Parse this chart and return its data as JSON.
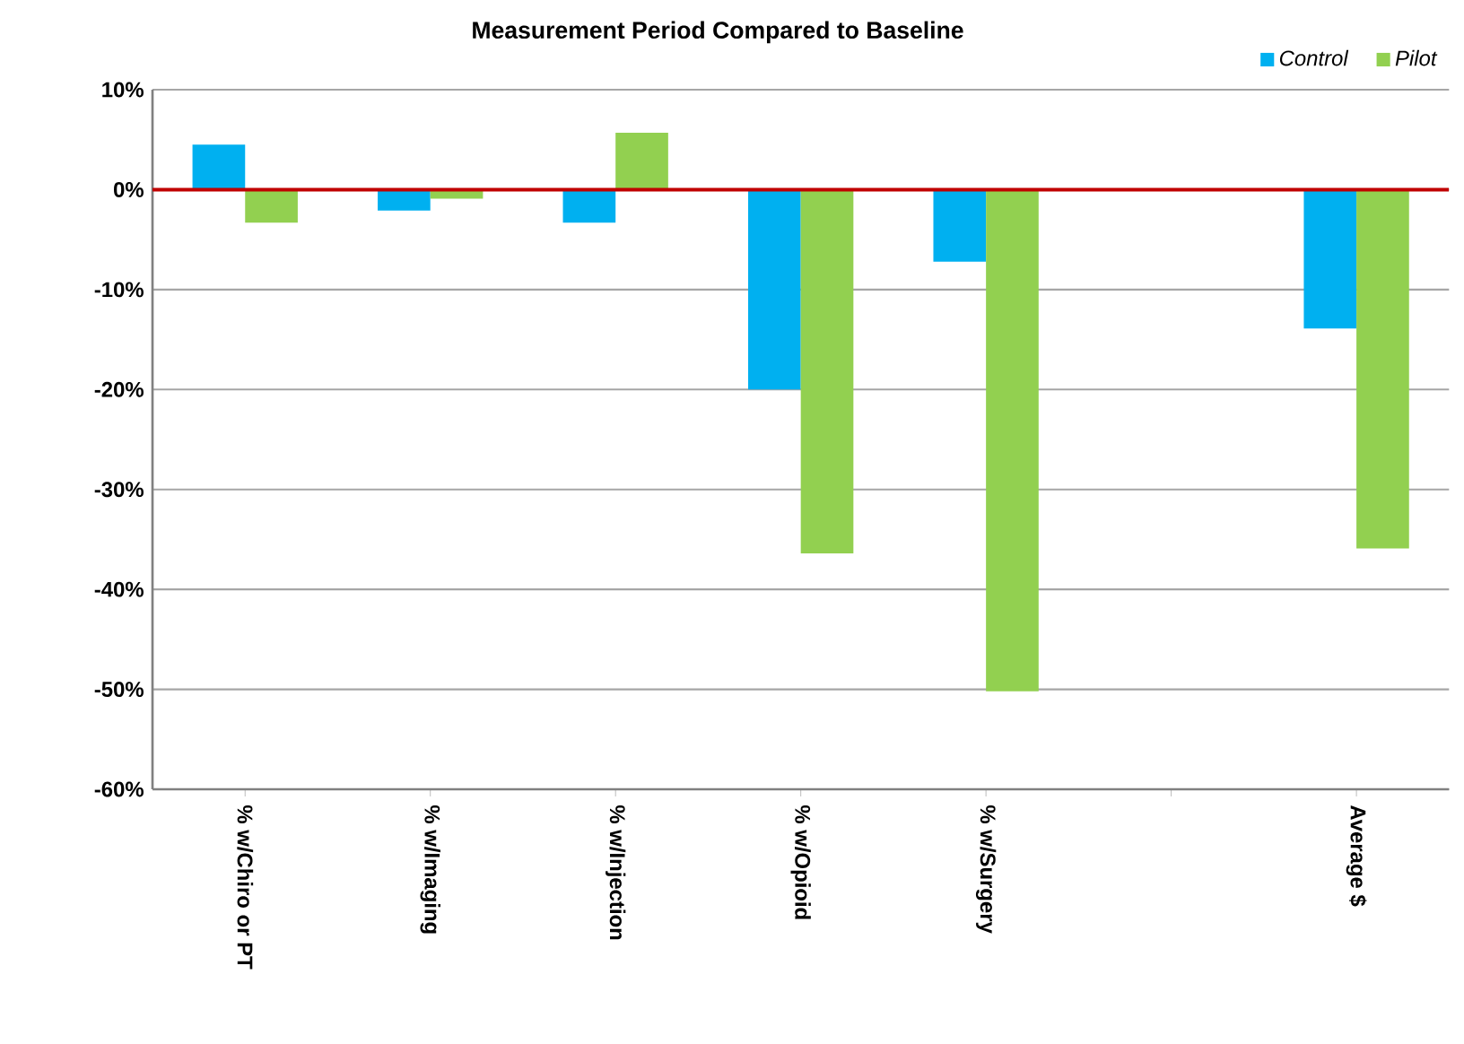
{
  "chart_data": {
    "type": "bar",
    "title": "Measurement Period Compared to Baseline",
    "categories": [
      "% w/Chiro or PT",
      "% w/Imaging",
      "% w/Injection",
      "% w/Opioid",
      "% w/Surgery",
      null,
      "Average $"
    ],
    "series": [
      {
        "name": "Control",
        "color": "#00b0f0",
        "values": [
          4.5,
          -2.1,
          -3.3,
          -20,
          -7.2,
          null,
          -13.9
        ]
      },
      {
        "name": "Pilot",
        "color": "#92d050",
        "values": [
          -3.3,
          -0.9,
          5.7,
          -36.4,
          -50.2,
          null,
          -35.9
        ]
      }
    ],
    "ylim": [
      -60,
      10
    ],
    "yticks": [
      {
        "value": -60,
        "label": "-60%"
      },
      {
        "value": -50,
        "label": "-50%"
      },
      {
        "value": -40,
        "label": "-40%"
      },
      {
        "value": -30,
        "label": "-30%"
      },
      {
        "value": -20,
        "label": "-20%"
      },
      {
        "value": -10,
        "label": "-10%"
      },
      {
        "value": 0,
        "label": "0%"
      },
      {
        "value": 10,
        "label": "10%"
      }
    ],
    "grid": "y",
    "legend": "top right",
    "ref_lines": [
      {
        "axis": "y",
        "value": 0,
        "color": "#c00000"
      }
    ]
  }
}
